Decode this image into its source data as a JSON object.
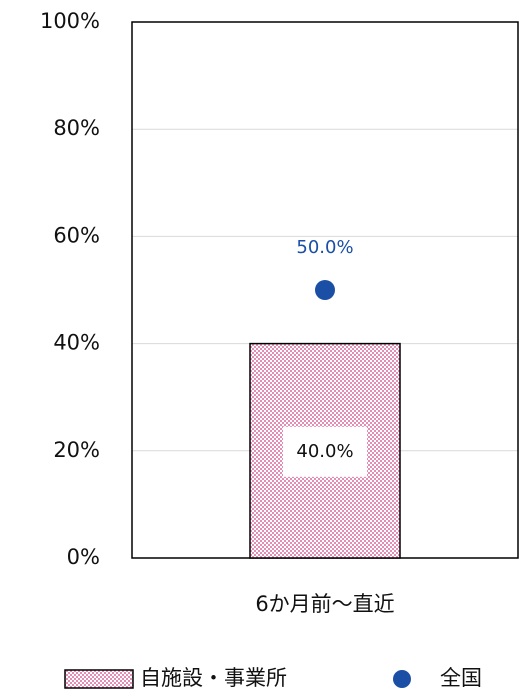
{
  "chart_data": {
    "type": "bar",
    "categories": [
      "6か月前～直近"
    ],
    "series": [
      {
        "name": "自施設・事業所",
        "type": "bar",
        "color": "#e58cb4",
        "values": [
          40
        ],
        "value_labels": [
          "40.0%"
        ]
      },
      {
        "name": "全国",
        "type": "scatter",
        "color": "#1b4fa6",
        "values": [
          50
        ],
        "value_labels": [
          "50.0%"
        ]
      }
    ],
    "ylim": [
      0,
      100
    ],
    "yticks": [
      {
        "value": 0,
        "label": "0%"
      },
      {
        "value": 20,
        "label": "20%"
      },
      {
        "value": 40,
        "label": "40%"
      },
      {
        "value": 60,
        "label": "60%"
      },
      {
        "value": 80,
        "label": "80%"
      },
      {
        "value": 100,
        "label": "100%"
      }
    ],
    "grid": true,
    "legend": "bottom"
  }
}
